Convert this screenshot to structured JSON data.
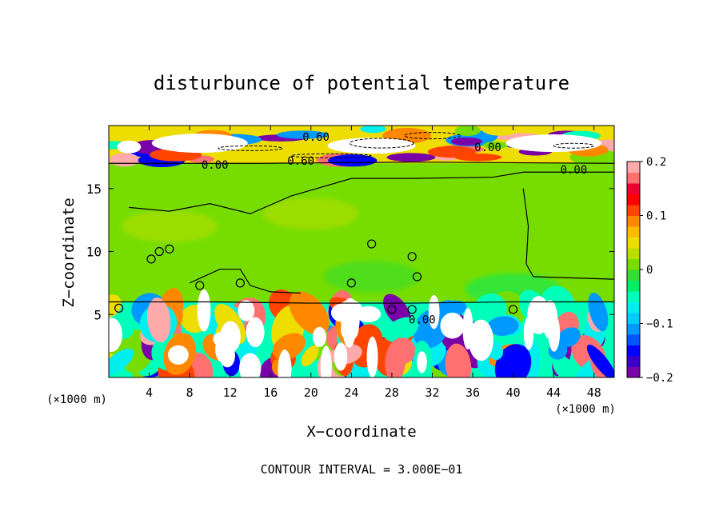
{
  "chart_data": {
    "type": "heatmap",
    "title": "disturbunce of potential temperature",
    "xlabel": "X−coordinate",
    "ylabel": "Z−coordinate",
    "x_unit_left": "(×1000 m)",
    "x_unit_right": "(×1000 m)",
    "xlim": [
      0,
      50
    ],
    "ylim": [
      0,
      20
    ],
    "x_ticks": [
      4,
      8,
      12,
      16,
      20,
      24,
      28,
      32,
      36,
      40,
      44,
      48
    ],
    "y_ticks": [
      5,
      10,
      15
    ],
    "colorbar": {
      "range": [
        -0.2,
        0.2
      ],
      "tick_labels": [
        "0.2",
        "0.1",
        "0",
        "−0.1",
        "−0.2"
      ],
      "tick_values": [
        0.2,
        0.1,
        0,
        -0.1,
        -0.2
      ],
      "colors": [
        "#7a00a8",
        "#3a00c8",
        "#0000ff",
        "#0055ff",
        "#0099ff",
        "#00ccff",
        "#00eeee",
        "#00ffbb",
        "#00ee66",
        "#33dd33",
        "#77dd00",
        "#bbdd00",
        "#eedd00",
        "#ffbb00",
        "#ff8800",
        "#ff4400",
        "#ff0000",
        "#ee0033",
        "#ff7070",
        "#ffaaaa"
      ]
    },
    "contour_labels": [
      {
        "text": "0.60",
        "x": 20.5,
        "y": 19.1
      },
      {
        "text": "0.00",
        "x": 10.5,
        "y": 16.9
      },
      {
        "text": "0.60",
        "x": 19.0,
        "y": 17.2
      },
      {
        "text": "0.00",
        "x": 37.5,
        "y": 18.3
      },
      {
        "text": "0.00",
        "x": 46.0,
        "y": 16.5
      },
      {
        "text": "0.00",
        "x": 31.0,
        "y": 4.6
      }
    ],
    "annotation": "CONTOUR INTERVAL = 3.000E−01"
  }
}
